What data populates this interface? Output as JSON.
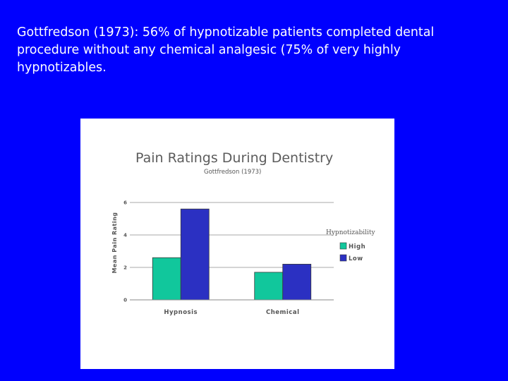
{
  "slide": {
    "text": "Gottfredson (1973): 56% of hypnotizable patients completed dental procedure without any chemical analgesic (75%  of very highly hypnotizables."
  },
  "colors": {
    "background": "#0000fe",
    "text": "#ffffff",
    "high": "#11c79c",
    "low": "#2b30c2"
  },
  "chart_data": {
    "type": "bar",
    "title": "Pain Ratings During Dentistry",
    "subtitle": "Gottfredson (1973)",
    "xlabel": "",
    "ylabel": "Mean Pain Rating",
    "categories": [
      "Hypnosis",
      "Chemical"
    ],
    "series": [
      {
        "name": "High",
        "values": [
          2.6,
          1.7
        ],
        "color": "#11c79c"
      },
      {
        "name": "Low",
        "values": [
          5.6,
          2.2
        ],
        "color": "#2b30c2"
      }
    ],
    "ylim": [
      0,
      6
    ],
    "yticks": [
      "0",
      "2",
      "4",
      "6"
    ],
    "grid": true,
    "legend": {
      "title": "Hypnotizability",
      "placement": "right"
    }
  }
}
